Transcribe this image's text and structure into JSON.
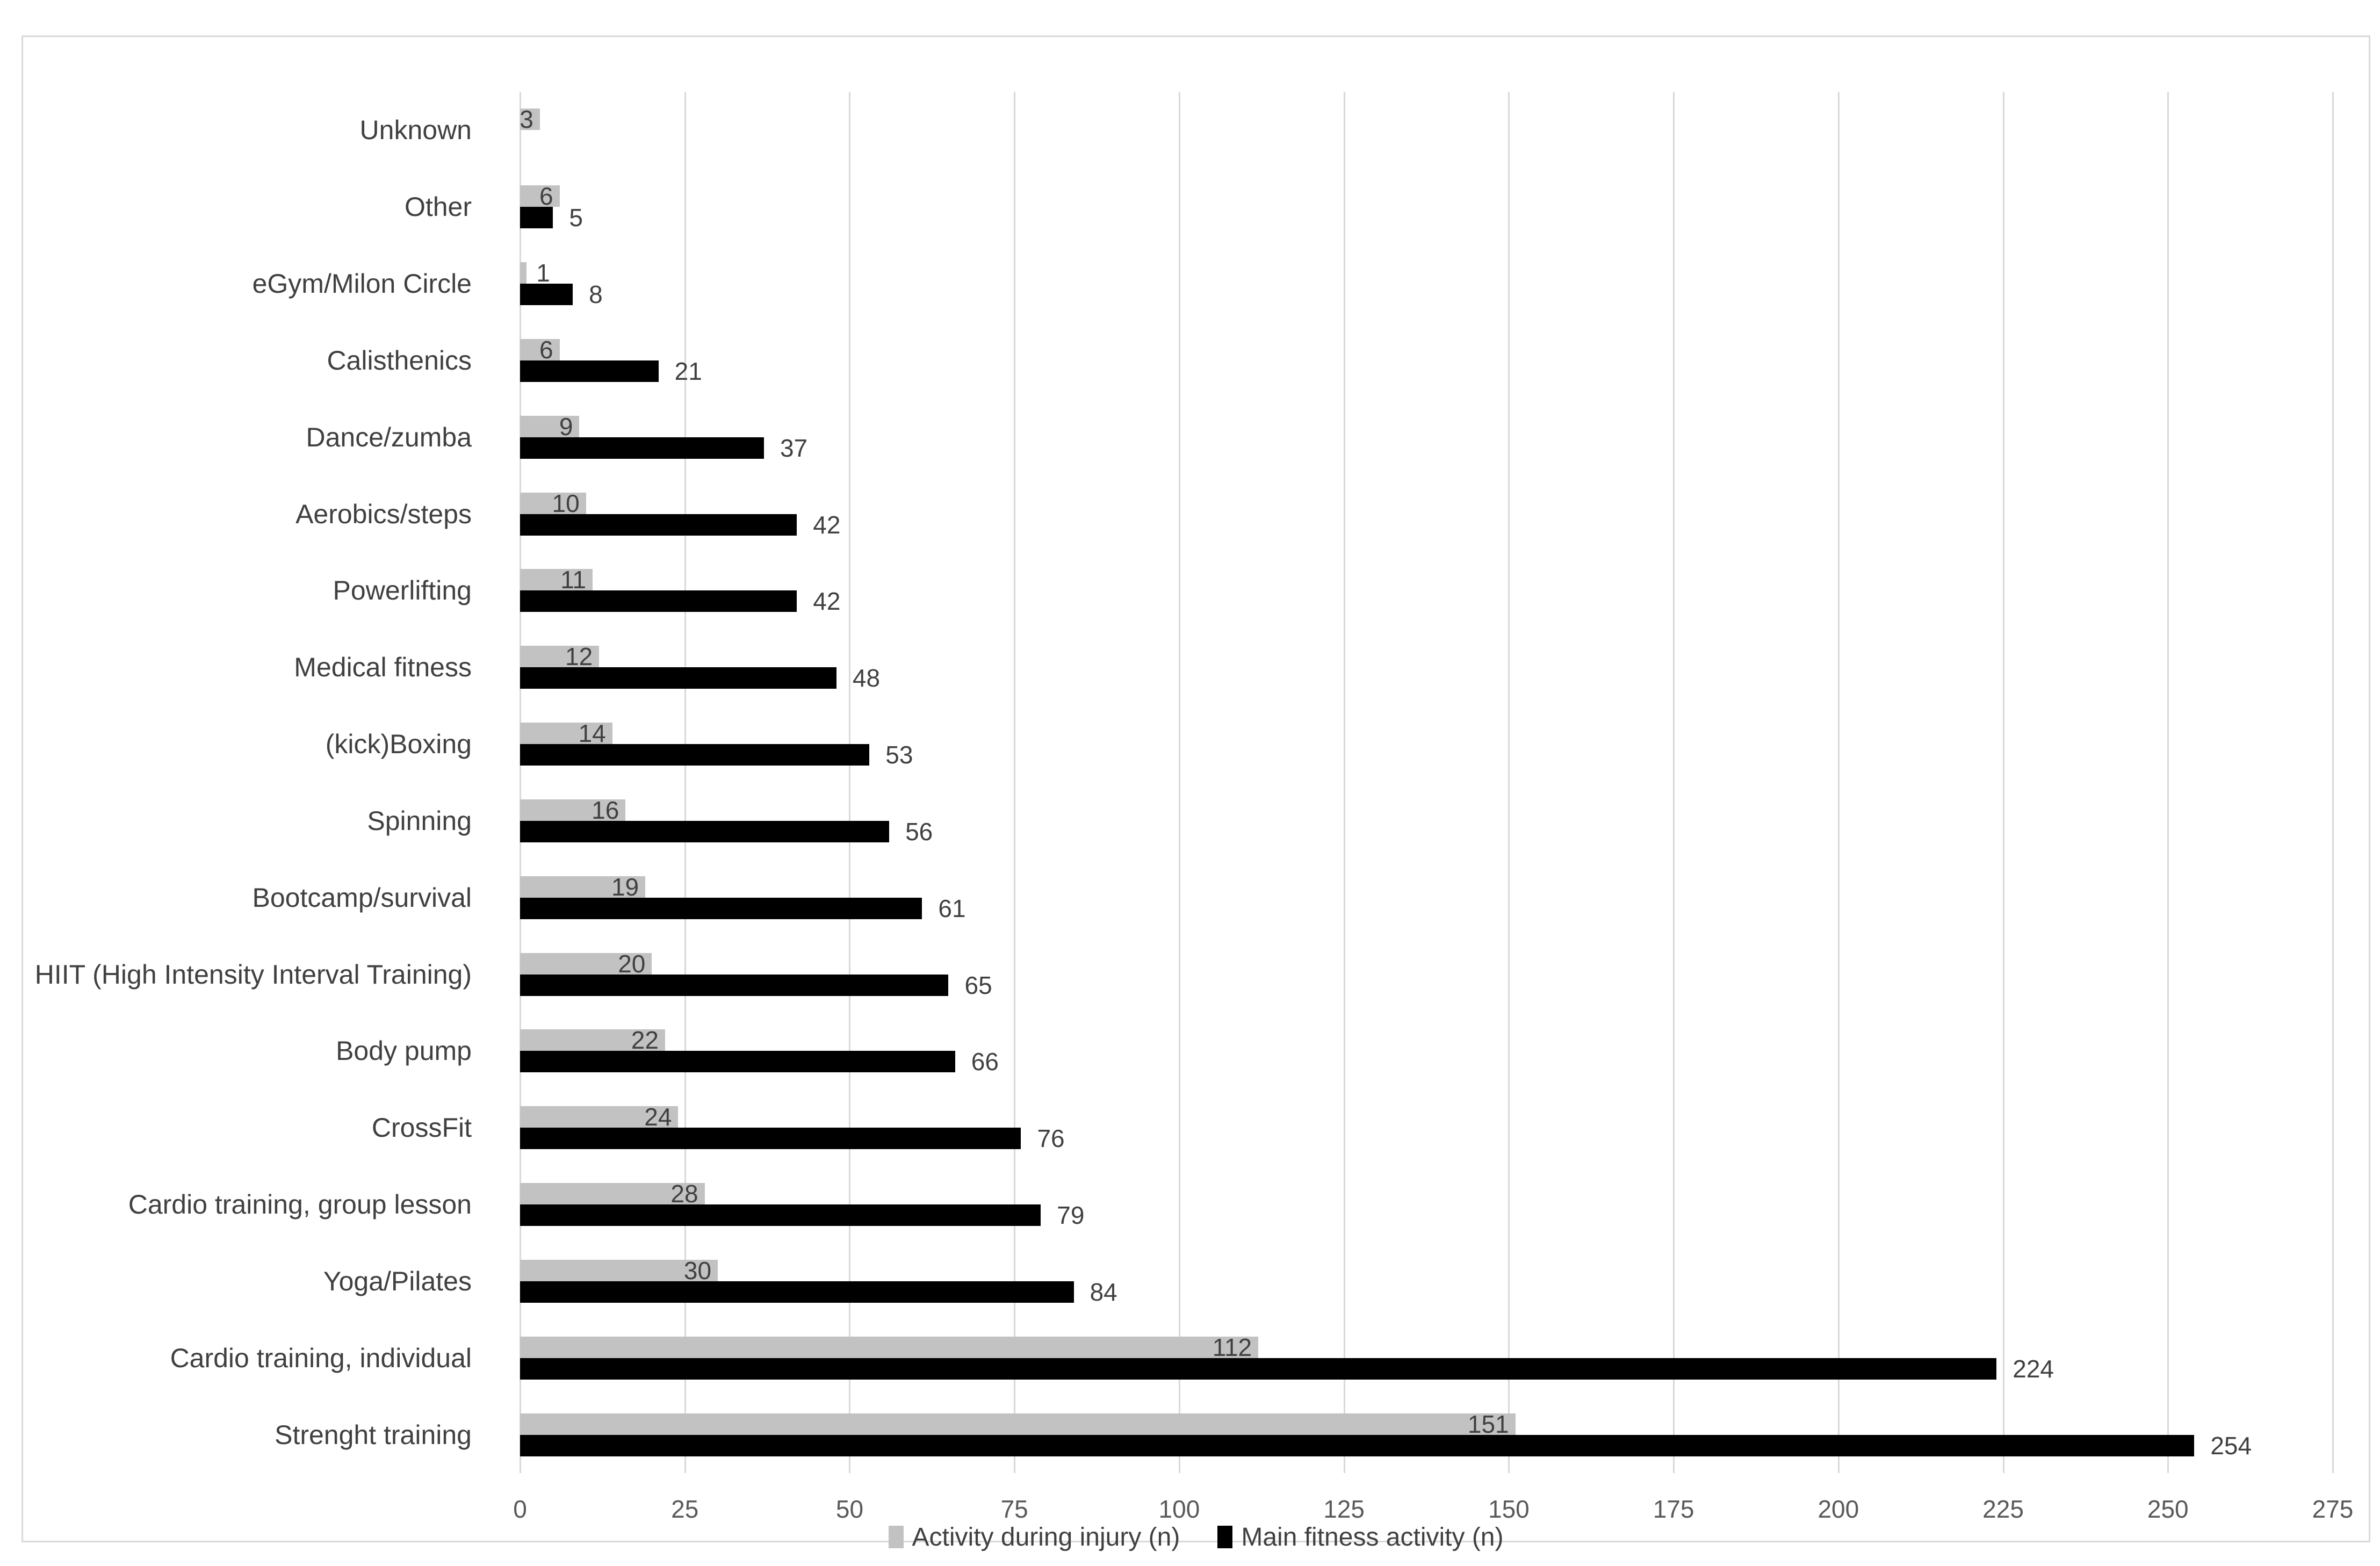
{
  "chart_data": {
    "type": "bar",
    "orientation": "horizontal",
    "title": "",
    "categories_top_to_bottom": [
      "Unknown",
      "Other",
      "eGym/Milon Circle",
      "Calisthenics",
      "Dance/zumba",
      "Aerobics/steps",
      "Powerlifting",
      "Medical fitness",
      "(kick)Boxing",
      "Spinning",
      "Bootcamp/survival",
      "HIIT (High Intensity Interval Training)",
      "Body pump",
      "CrossFit",
      "Cardio training, group lesson",
      "Yoga/Pilates",
      "Cardio training, individual",
      "Strenght training"
    ],
    "series": [
      {
        "name": "Activity during injury (n)",
        "color": "#c2c2c2",
        "values": [
          3,
          6,
          1,
          6,
          9,
          10,
          11,
          12,
          14,
          16,
          19,
          20,
          22,
          24,
          28,
          30,
          112,
          151
        ]
      },
      {
        "name": "Main fitness activity (n)",
        "color": "#000000",
        "values": [
          null,
          5,
          8,
          21,
          37,
          42,
          42,
          48,
          53,
          56,
          61,
          65,
          66,
          76,
          79,
          84,
          224,
          254
        ]
      }
    ],
    "x_axis": {
      "ticks": [
        0,
        25,
        50,
        75,
        100,
        125,
        150,
        175,
        200,
        225,
        250,
        275
      ],
      "min": 0,
      "max": 275
    },
    "legend_position": "bottom",
    "grid": true,
    "colors": {
      "gridline": "#d9d9d9",
      "frame_border": "#d9d9d9",
      "category_text": "#404040",
      "value_text": "#404040",
      "tick_text": "#595959",
      "background": "#ffffff"
    }
  }
}
